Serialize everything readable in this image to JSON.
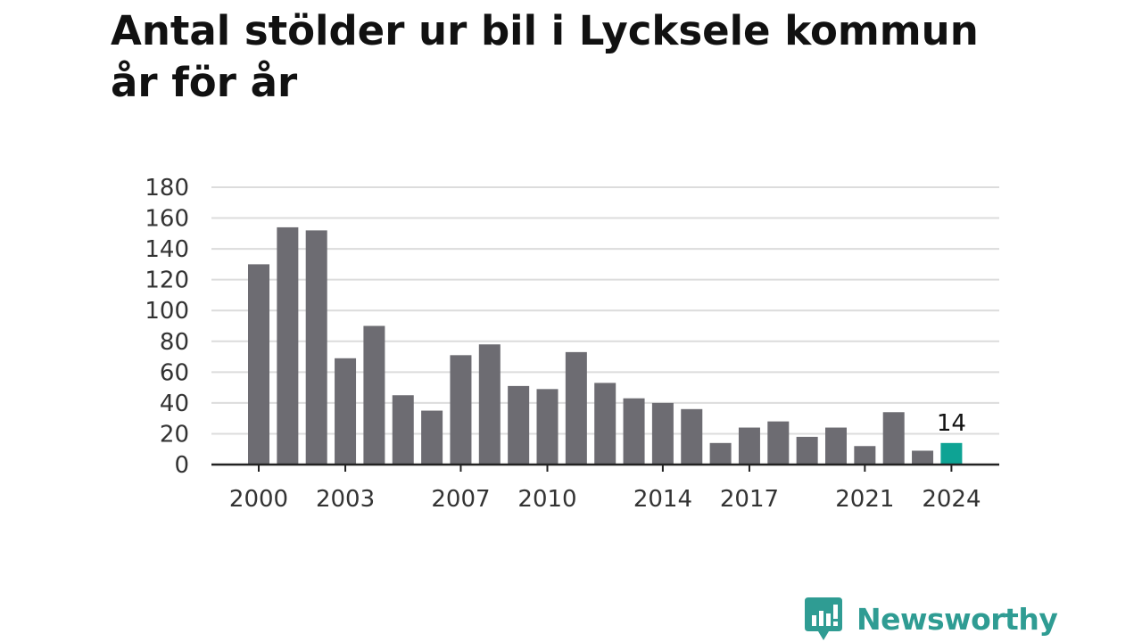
{
  "title": {
    "line1": "Antal stölder ur bil i Lycksele kommun",
    "line2": "år för år"
  },
  "brand": {
    "name": "Newsworthy",
    "icon": "newsworthy-logo-icon",
    "color": "#2f9c93"
  },
  "colors": {
    "bar": "#6d6c72",
    "highlight": "#0ea394",
    "grid": "#dcdcdc",
    "axis": "#222222"
  },
  "chart_data": {
    "type": "bar",
    "title": "Antal stölder ur bil i Lycksele kommun år för år",
    "xlabel": "",
    "ylabel": "",
    "categories": [
      2000,
      2001,
      2002,
      2003,
      2004,
      2005,
      2006,
      2007,
      2008,
      2009,
      2010,
      2011,
      2012,
      2013,
      2014,
      2015,
      2016,
      2017,
      2018,
      2019,
      2020,
      2021,
      2022,
      2023,
      2024
    ],
    "values": [
      130,
      154,
      152,
      69,
      90,
      45,
      35,
      71,
      78,
      51,
      49,
      73,
      53,
      43,
      40,
      36,
      14,
      24,
      28,
      18,
      24,
      12,
      34,
      9,
      14
    ],
    "ylim": [
      0,
      180
    ],
    "yticks": [
      0,
      20,
      40,
      60,
      80,
      100,
      120,
      140,
      160,
      180
    ],
    "xticks": [
      2000,
      2003,
      2007,
      2010,
      2014,
      2017,
      2021,
      2024
    ],
    "highlight": {
      "category": 2024,
      "label": "14"
    },
    "grid": true,
    "legend": "none"
  }
}
